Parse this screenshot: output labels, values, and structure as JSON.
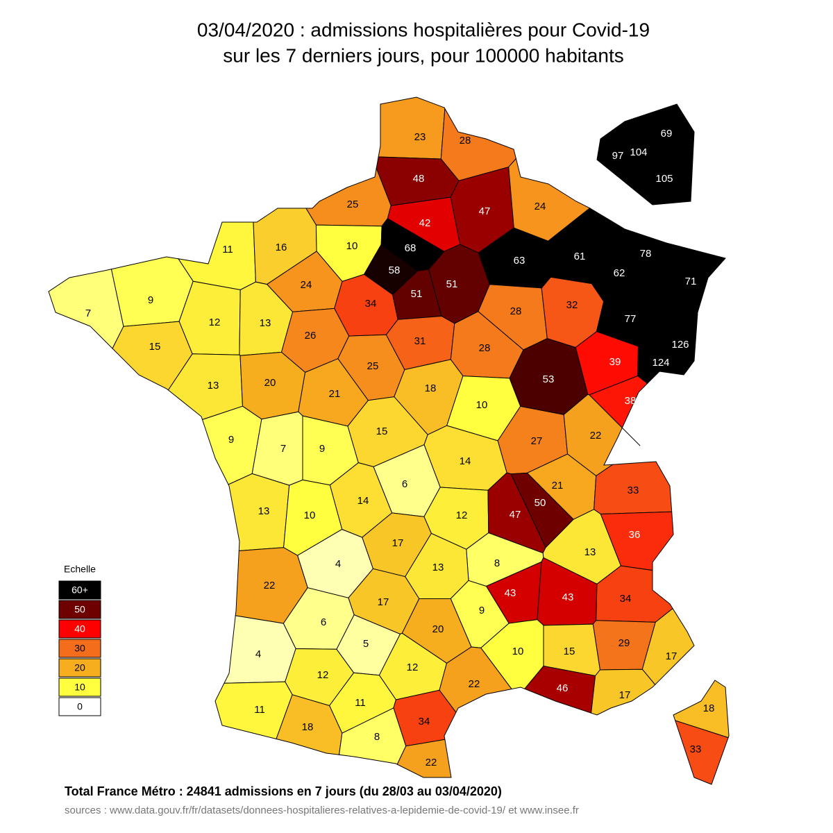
{
  "map": {
    "title": [
      "03/04/2020 : admissions hospitalières pour Covid-19",
      "sur les 7 derniers jours, pour 100000 habitants"
    ],
    "legend": {
      "title": "Echelle",
      "steps": [
        {
          "value": 60,
          "label": "60+"
        },
        50,
        40,
        30,
        20,
        10,
        0
      ],
      "colors": [
        "#000000",
        "#6e0000",
        "#ff0000",
        "#f46d1b",
        "#f7ae1e",
        "#ffff40",
        "#ffffff"
      ]
    },
    "values": [
      23,
      28,
      48,
      25,
      47,
      24,
      42,
      11,
      16,
      10,
      68,
      58,
      63,
      61,
      78,
      62,
      71,
      9,
      7,
      24,
      34,
      51,
      51,
      28,
      32,
      77,
      12,
      13,
      26,
      31,
      28,
      126,
      124,
      15,
      39,
      13,
      20,
      25,
      21,
      53,
      18,
      10,
      38,
      9,
      7,
      9,
      15,
      27,
      22,
      14,
      6,
      21,
      33,
      14,
      50,
      13,
      10,
      12,
      47,
      36,
      17,
      13,
      8,
      4,
      22,
      13,
      43,
      43,
      34,
      17,
      9,
      6,
      20,
      5,
      29,
      10,
      15,
      17,
      4,
      12,
      12,
      22,
      46,
      17,
      18,
      11,
      11,
      34,
      18,
      8,
      33,
      22,
      69,
      97,
      104,
      105
    ],
    "total": "Total France Métro : 24841 admissions en 7 jours (du 28/03 au 03/04/2020)",
    "sources": "sources : www.data.gouv.fr/fr/datasets/donnees-hospitalieres-relatives-a-lepidemie-de-covid-19/  et  www.insee.fr"
  }
}
